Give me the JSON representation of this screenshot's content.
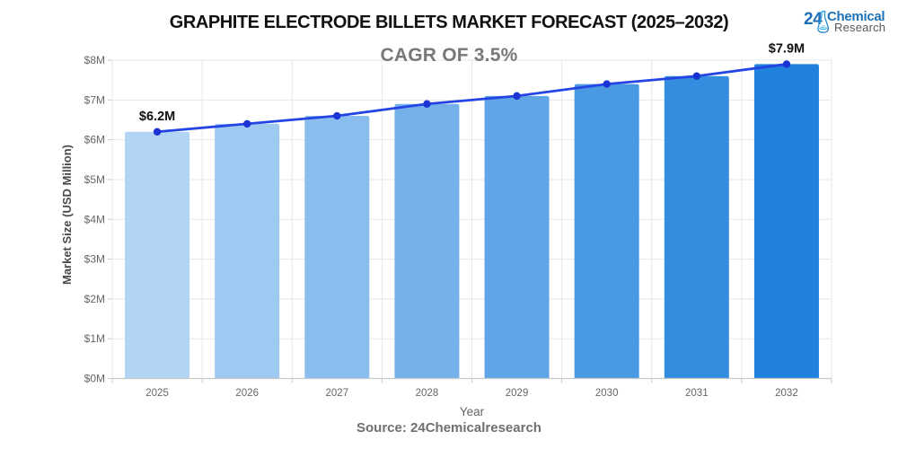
{
  "header": {
    "title": "GRAPHITE ELECTRODE BILLETS MARKET FORECAST (2025–2032)",
    "subtitle": "CAGR OF 3.5%"
  },
  "logo": {
    "number": "24",
    "word_primary": "Chemical",
    "word_secondary": "Research",
    "icon": "erlenmeyer-flask-icon",
    "color_number": "#1e6fb7",
    "color_primary": "#1e73b8",
    "color_secondary": "#55575a",
    "flask_color_light": "#2aabe2",
    "flask_color_dark": "#1b75bc"
  },
  "footer": {
    "source": "Source: 24Chemicalresearch"
  },
  "chart_data": {
    "type": "bar",
    "title": "GRAPHITE ELECTRODE BILLETS MARKET FORECAST (2025–2032)",
    "subtitle": "CAGR OF 3.5%",
    "categories": [
      "2025",
      "2026",
      "2027",
      "2028",
      "2029",
      "2030",
      "2031",
      "2032"
    ],
    "series": [
      {
        "name": "Market Size bars",
        "type": "bar",
        "values": [
          6.2,
          6.4,
          6.6,
          6.9,
          7.1,
          7.4,
          7.6,
          7.9
        ]
      },
      {
        "name": "Trend line",
        "type": "line",
        "values": [
          6.2,
          6.4,
          6.6,
          6.9,
          7.1,
          7.4,
          7.6,
          7.9
        ]
      }
    ],
    "xlabel": "Year",
    "ylabel": "Market Size (USD Million)",
    "ylim": [
      0,
      8
    ],
    "ytick_step": 1,
    "ytick_labels": [
      "$0M",
      "$1M",
      "$2M",
      "$3M",
      "$4M",
      "$5M",
      "$6M",
      "$7M",
      "$8M"
    ],
    "grid": true,
    "legend": false,
    "annotations": [
      {
        "category": "2025",
        "text": "$6.2M"
      },
      {
        "category": "2032",
        "text": "$7.9M"
      }
    ],
    "bar_colors": [
      "#b3d5f5",
      "#9ec9f1",
      "#89bdee",
      "#74b1ea",
      "#5fa5e7",
      "#4a99e3",
      "#358de0",
      "#2082dc"
    ],
    "line_color": "#2444e4",
    "marker_color": "#1c33d4",
    "grid_color": "#e7e7e7",
    "axis_color": "#c9c9c9",
    "tick_label_color": "#666666",
    "axis_title_color": "#4a4a4a",
    "annotation_color": "#111111"
  }
}
